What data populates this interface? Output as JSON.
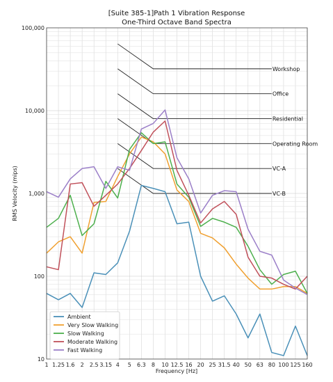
{
  "chart_data": {
    "type": "line",
    "title": "[Suite 385-1]Path 1 Vibration Response",
    "subtitle": "One-Third Octave Band Spectra",
    "xlabel": "Frequency [Hz]",
    "ylabel": "RMS Velocity (mips)",
    "yscale": "log",
    "ylim": [
      10,
      100000
    ],
    "yticks": [
      10,
      100,
      1000,
      10000,
      100000
    ],
    "ytick_labels": [
      "10",
      "100",
      "1,000",
      "10,000",
      "100,000"
    ],
    "categories": [
      "1",
      "1.25",
      "1.6",
      "2",
      "2.5",
      "3.15",
      "4",
      "5",
      "6.3",
      "8",
      "10",
      "12.5",
      "16",
      "20",
      "25",
      "31.5",
      "40",
      "50",
      "63",
      "80",
      "100",
      "125",
      "160"
    ],
    "grid": true,
    "legend_position": "lower-left",
    "series": [
      {
        "name": "Ambient",
        "color": "#4a90b8",
        "values": [
          62,
          52,
          62,
          42,
          110,
          105,
          145,
          350,
          1250,
          1150,
          1050,
          430,
          450,
          100,
          50,
          58,
          35,
          18,
          35,
          12,
          11,
          25,
          11
        ]
      },
      {
        "name": "Very Slow Walking",
        "color": "#f0a030",
        "values": [
          190,
          260,
          300,
          190,
          780,
          800,
          1600,
          3000,
          4800,
          4200,
          3000,
          1100,
          800,
          330,
          290,
          220,
          140,
          95,
          70,
          70,
          75,
          75,
          62
        ]
      },
      {
        "name": "Slow Walking",
        "color": "#4caf4c",
        "values": [
          390,
          500,
          950,
          310,
          430,
          1400,
          880,
          3400,
          5400,
          4000,
          4200,
          1300,
          900,
          400,
          500,
          450,
          390,
          230,
          120,
          80,
          105,
          115,
          62
        ]
      },
      {
        "name": "Moderate Walking",
        "color": "#c0505a",
        "values": [
          130,
          120,
          1300,
          1350,
          700,
          950,
          1300,
          2000,
          3300,
          5500,
          7500,
          1900,
          950,
          440,
          650,
          800,
          560,
          170,
          100,
          95,
          80,
          70,
          100
        ]
      },
      {
        "name": "Fast Walking",
        "color": "#9b7fc8",
        "values": [
          1050,
          900,
          1500,
          2000,
          2100,
          1150,
          2100,
          1900,
          6000,
          7000,
          10200,
          2700,
          1500,
          580,
          950,
          1080,
          1050,
          370,
          200,
          180,
          90,
          72,
          60
        ]
      }
    ],
    "criteria": [
      {
        "label": "Workshop",
        "value": 32000
      },
      {
        "label": "Office",
        "value": 16000
      },
      {
        "label": "Residential",
        "value": 8000
      },
      {
        "label": "Operating Room",
        "value": 4000
      },
      {
        "label": "VC-A",
        "value": 2000
      },
      {
        "label": "VC-B",
        "value": 1000
      }
    ]
  }
}
